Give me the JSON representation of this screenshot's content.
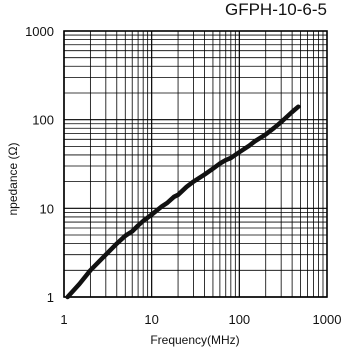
{
  "chart_data": {
    "type": "line",
    "title": "GFPH-10-6-5",
    "xlabel": "Frequency(MHz)",
    "ylabel": "npedance (Ω)",
    "x_scale": "log",
    "y_scale": "log",
    "xlim": [
      1,
      1000
    ],
    "ylim": [
      1,
      1000
    ],
    "x_ticks": [
      "1",
      "10",
      "100",
      "1000"
    ],
    "y_ticks": [
      "1",
      "10",
      "100",
      "1000"
    ],
    "grid": true,
    "series": [
      {
        "x": [
          1.1,
          1.5,
          2,
          3,
          4,
          5,
          6,
          7,
          8,
          10,
          13,
          15,
          18,
          20,
          25,
          30,
          40,
          50,
          60,
          70,
          80,
          100,
          130,
          150,
          200,
          250,
          300,
          400,
          470
        ],
        "y": [
          1,
          1.4,
          2,
          3,
          4,
          4.9,
          5.5,
          6.4,
          7.2,
          8.5,
          10.5,
          11.5,
          13.5,
          14.2,
          17.5,
          20,
          24,
          28,
          32,
          35,
          37,
          43,
          51,
          57,
          68,
          81,
          94,
          122,
          140
        ]
      }
    ]
  }
}
